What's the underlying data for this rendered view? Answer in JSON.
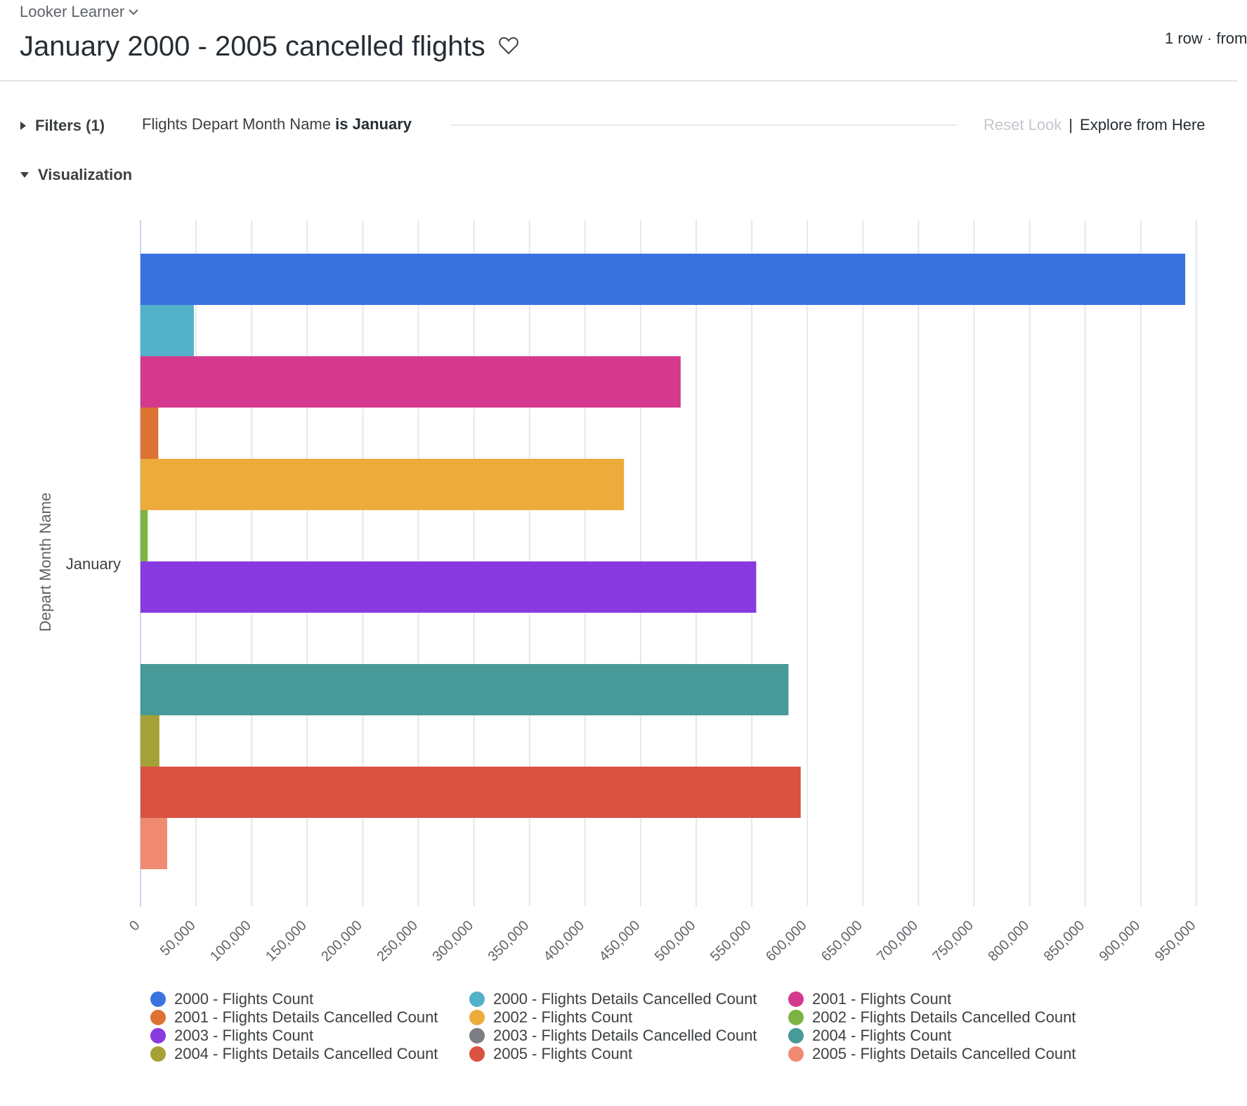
{
  "header": {
    "breadcrumb": "Looker Learner",
    "title": "January 2000 - 2005 cancelled flights",
    "row_info": "1 row · from"
  },
  "filters": {
    "toggle_label": "Filters (1)",
    "summary_field": "Flights Depart Month Name",
    "summary_op": "is",
    "summary_value": "January",
    "reset_label": "Reset Look",
    "separator": "|",
    "explore_label": "Explore from Here"
  },
  "visualization": {
    "toggle_label": "Visualization"
  },
  "chart_data": {
    "type": "bar",
    "orientation": "horizontal",
    "categories": [
      "January"
    ],
    "ylabel": "Depart Month Name",
    "xlabel": "",
    "xlim": [
      0,
      950000
    ],
    "x_ticks": [
      "0",
      "50,000",
      "100,000",
      "150,000",
      "200,000",
      "250,000",
      "300,000",
      "350,000",
      "400,000",
      "450,000",
      "500,000",
      "550,000",
      "600,000",
      "650,000",
      "700,000",
      "750,000",
      "800,000",
      "850,000",
      "900,000",
      "950,000"
    ],
    "grid": true,
    "legend_position": "bottom",
    "series": [
      {
        "name": "2000 - Flights Count",
        "color": "#3a73e0",
        "values": [
          940000
        ]
      },
      {
        "name": "2000 - Flights Details Cancelled Count",
        "color": "#53b1c9",
        "values": [
          48000
        ]
      },
      {
        "name": "2001 - Flights Count",
        "color": "#d4398d",
        "values": [
          486000
        ]
      },
      {
        "name": "2001 - Flights Details Cancelled Count",
        "color": "#dd7232",
        "values": [
          16000
        ]
      },
      {
        "name": "2002 - Flights Count",
        "color": "#ecab3b",
        "values": [
          435000
        ]
      },
      {
        "name": "2002 - Flights Details Cancelled Count",
        "color": "#7cb342",
        "values": [
          6500
        ]
      },
      {
        "name": "2003 - Flights Count",
        "color": "#883ae0",
        "values": [
          554000
        ]
      },
      {
        "name": "2003 - Flights Details Cancelled Count",
        "color": "#7b7e82",
        "values": [
          0
        ]
      },
      {
        "name": "2004 - Flights Count",
        "color": "#479a97",
        "values": [
          583000
        ]
      },
      {
        "name": "2004 - Flights Details Cancelled Count",
        "color": "#a6a136",
        "values": [
          17000
        ]
      },
      {
        "name": "2005 - Flights Count",
        "color": "#d95242",
        "values": [
          594000
        ]
      },
      {
        "name": "2005 - Flights Details Cancelled Count",
        "color": "#f08a73",
        "values": [
          24000
        ]
      }
    ]
  }
}
